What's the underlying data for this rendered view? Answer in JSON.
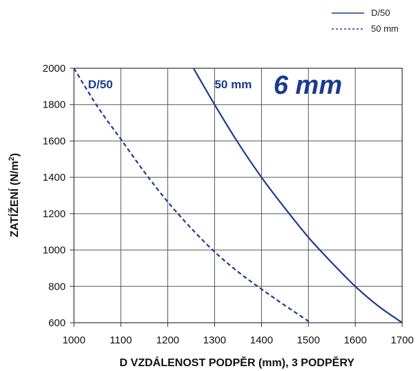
{
  "chart_data": {
    "type": "line",
    "title": "",
    "xlabel": "D   VZDÁLENOST PODPĚR (mm), 3 PODPĚRY",
    "ylabel_main": "ZATÍŽENÍ (N/m",
    "ylabel_sup": "2",
    "ylabel_close": ")",
    "xlim": [
      1000,
      1700
    ],
    "ylim": [
      600,
      2000
    ],
    "xticks": [
      1000,
      1100,
      1200,
      1300,
      1400,
      1500,
      1600,
      1700
    ],
    "yticks": [
      600,
      800,
      1000,
      1200,
      1400,
      1600,
      1800,
      2000
    ],
    "grid": true,
    "legend_position": "top-right",
    "series": [
      {
        "name": "D/50",
        "style": "solid",
        "color": "#1a3a8f",
        "x": [
          1255,
          1300,
          1350,
          1400,
          1450,
          1500,
          1550,
          1600,
          1650,
          1700
        ],
        "y": [
          2000,
          1800,
          1590,
          1400,
          1230,
          1070,
          930,
          800,
          690,
          600
        ]
      },
      {
        "name": "50 mm",
        "style": "dashed",
        "color": "#1a3a8f",
        "x": [
          1000,
          1050,
          1100,
          1150,
          1200,
          1250,
          1300,
          1350,
          1400,
          1450,
          1505
        ],
        "y": [
          2000,
          1790,
          1610,
          1430,
          1265,
          1120,
          990,
          880,
          785,
          695,
          600
        ]
      }
    ],
    "annotations": [
      {
        "text": "D/50",
        "x": 1030,
        "y": 1890,
        "color": "#1a3a8f"
      },
      {
        "text": "50 mm",
        "x": 1300,
        "y": 1890,
        "color": "#1a3a8f"
      },
      {
        "text": "6 mm",
        "x": 1572,
        "y": 1860,
        "color": "#1a3a8f"
      }
    ]
  }
}
